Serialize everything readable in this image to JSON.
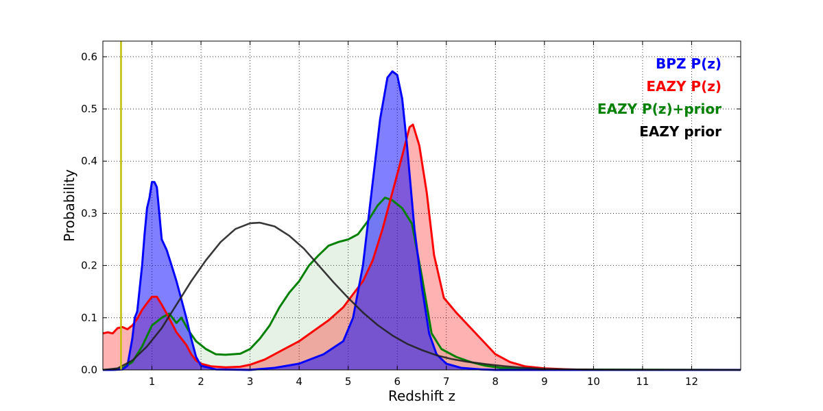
{
  "chart_data": {
    "type": "area",
    "title": "",
    "xlabel": "Redshift z",
    "ylabel": "Probability",
    "xlim": [
      0,
      13
    ],
    "ylim": [
      0,
      0.63
    ],
    "xticks": [
      1,
      2,
      3,
      4,
      5,
      6,
      7,
      8,
      9,
      10,
      11,
      12
    ],
    "yticks": [
      0.0,
      0.1,
      0.2,
      0.3,
      0.4,
      0.5,
      0.6
    ],
    "grid": true,
    "legend_position": "top-right",
    "vline": {
      "x": 0.37,
      "color": "#bfbf00"
    },
    "series": [
      {
        "name": "EAZY P(z)+prior",
        "color": "#008000",
        "fill": true,
        "fill_opacity": 0.1,
        "points": [
          [
            0,
            0
          ],
          [
            0.2,
            0.001
          ],
          [
            0.4,
            0.003
          ],
          [
            0.6,
            0.015
          ],
          [
            0.8,
            0.045
          ],
          [
            1.0,
            0.085
          ],
          [
            1.2,
            0.1
          ],
          [
            1.35,
            0.108
          ],
          [
            1.5,
            0.09
          ],
          [
            1.6,
            0.1
          ],
          [
            1.75,
            0.075
          ],
          [
            1.9,
            0.055
          ],
          [
            2.1,
            0.04
          ],
          [
            2.3,
            0.03
          ],
          [
            2.5,
            0.029
          ],
          [
            2.8,
            0.031
          ],
          [
            3.0,
            0.04
          ],
          [
            3.2,
            0.06
          ],
          [
            3.4,
            0.085
          ],
          [
            3.6,
            0.12
          ],
          [
            3.8,
            0.148
          ],
          [
            4.0,
            0.17
          ],
          [
            4.2,
            0.2
          ],
          [
            4.4,
            0.22
          ],
          [
            4.6,
            0.238
          ],
          [
            4.8,
            0.245
          ],
          [
            5.0,
            0.25
          ],
          [
            5.2,
            0.26
          ],
          [
            5.4,
            0.285
          ],
          [
            5.6,
            0.315
          ],
          [
            5.75,
            0.33
          ],
          [
            5.9,
            0.325
          ],
          [
            6.1,
            0.31
          ],
          [
            6.3,
            0.28
          ],
          [
            6.5,
            0.18
          ],
          [
            6.7,
            0.07
          ],
          [
            6.9,
            0.04
          ],
          [
            7.2,
            0.025
          ],
          [
            7.5,
            0.015
          ],
          [
            7.8,
            0.008
          ],
          [
            8.1,
            0.004
          ],
          [
            8.5,
            0.002
          ],
          [
            9,
            0.001
          ],
          [
            10,
            0.0005
          ],
          [
            13,
            0
          ]
        ]
      },
      {
        "name": "EAZY P(z)",
        "color": "#ff0000",
        "fill": true,
        "fill_opacity": 0.3,
        "points": [
          [
            0,
            0.07
          ],
          [
            0.1,
            0.072
          ],
          [
            0.2,
            0.07
          ],
          [
            0.3,
            0.08
          ],
          [
            0.4,
            0.082
          ],
          [
            0.5,
            0.078
          ],
          [
            0.6,
            0.085
          ],
          [
            0.7,
            0.098
          ],
          [
            0.8,
            0.115
          ],
          [
            0.9,
            0.128
          ],
          [
            1.0,
            0.14
          ],
          [
            1.1,
            0.14
          ],
          [
            1.2,
            0.125
          ],
          [
            1.3,
            0.108
          ],
          [
            1.4,
            0.09
          ],
          [
            1.5,
            0.072
          ],
          [
            1.6,
            0.06
          ],
          [
            1.7,
            0.048
          ],
          [
            1.8,
            0.03
          ],
          [
            1.9,
            0.018
          ],
          [
            2.0,
            0.012
          ],
          [
            2.2,
            0.007
          ],
          [
            2.5,
            0.005
          ],
          [
            2.8,
            0.006
          ],
          [
            3.0,
            0.01
          ],
          [
            3.3,
            0.02
          ],
          [
            3.6,
            0.035
          ],
          [
            4.0,
            0.055
          ],
          [
            4.3,
            0.075
          ],
          [
            4.6,
            0.095
          ],
          [
            4.9,
            0.12
          ],
          [
            5.1,
            0.145
          ],
          [
            5.3,
            0.17
          ],
          [
            5.5,
            0.21
          ],
          [
            5.7,
            0.27
          ],
          [
            5.9,
            0.34
          ],
          [
            6.1,
            0.41
          ],
          [
            6.25,
            0.465
          ],
          [
            6.32,
            0.47
          ],
          [
            6.45,
            0.43
          ],
          [
            6.6,
            0.34
          ],
          [
            6.75,
            0.22
          ],
          [
            6.95,
            0.138
          ],
          [
            7.2,
            0.11
          ],
          [
            7.5,
            0.08
          ],
          [
            7.8,
            0.05
          ],
          [
            8.0,
            0.03
          ],
          [
            8.3,
            0.015
          ],
          [
            8.6,
            0.007
          ],
          [
            9.0,
            0.003
          ],
          [
            9.5,
            0.001
          ],
          [
            10,
            0
          ],
          [
            13,
            0
          ]
        ]
      },
      {
        "name": "BPZ P(z)",
        "color": "#0000ff",
        "fill": true,
        "fill_opacity": 0.5,
        "points": [
          [
            0,
            0
          ],
          [
            0.2,
            0
          ],
          [
            0.4,
            0.001
          ],
          [
            0.5,
            0.008
          ],
          [
            0.6,
            0.06
          ],
          [
            0.65,
            0.1
          ],
          [
            0.7,
            0.112
          ],
          [
            0.8,
            0.2
          ],
          [
            0.85,
            0.26
          ],
          [
            0.9,
            0.31
          ],
          [
            0.95,
            0.33
          ],
          [
            1.0,
            0.36
          ],
          [
            1.05,
            0.36
          ],
          [
            1.1,
            0.35
          ],
          [
            1.15,
            0.3
          ],
          [
            1.2,
            0.25
          ],
          [
            1.3,
            0.23
          ],
          [
            1.4,
            0.2
          ],
          [
            1.5,
            0.17
          ],
          [
            1.6,
            0.135
          ],
          [
            1.7,
            0.1
          ],
          [
            1.8,
            0.06
          ],
          [
            1.9,
            0.025
          ],
          [
            2.0,
            0.008
          ],
          [
            2.3,
            0.001
          ],
          [
            3.0,
            0
          ],
          [
            3.5,
            0.004
          ],
          [
            4.0,
            0.012
          ],
          [
            4.5,
            0.03
          ],
          [
            4.9,
            0.055
          ],
          [
            5.1,
            0.1
          ],
          [
            5.3,
            0.2
          ],
          [
            5.5,
            0.36
          ],
          [
            5.65,
            0.48
          ],
          [
            5.8,
            0.56
          ],
          [
            5.9,
            0.572
          ],
          [
            6.0,
            0.565
          ],
          [
            6.1,
            0.52
          ],
          [
            6.2,
            0.43
          ],
          [
            6.35,
            0.27
          ],
          [
            6.5,
            0.16
          ],
          [
            6.65,
            0.07
          ],
          [
            6.8,
            0.03
          ],
          [
            7.0,
            0.012
          ],
          [
            7.3,
            0.004
          ],
          [
            7.7,
            0.001
          ],
          [
            8,
            0
          ],
          [
            13,
            0
          ]
        ]
      },
      {
        "name": "EAZY prior",
        "color": "#222222",
        "fill": false,
        "points": [
          [
            0,
            0
          ],
          [
            0.3,
            0.003
          ],
          [
            0.6,
            0.018
          ],
          [
            0.9,
            0.045
          ],
          [
            1.2,
            0.08
          ],
          [
            1.5,
            0.125
          ],
          [
            1.8,
            0.17
          ],
          [
            2.1,
            0.21
          ],
          [
            2.4,
            0.245
          ],
          [
            2.7,
            0.27
          ],
          [
            3.0,
            0.281
          ],
          [
            3.2,
            0.282
          ],
          [
            3.5,
            0.275
          ],
          [
            3.8,
            0.257
          ],
          [
            4.1,
            0.232
          ],
          [
            4.4,
            0.2
          ],
          [
            4.7,
            0.168
          ],
          [
            5.0,
            0.138
          ],
          [
            5.3,
            0.11
          ],
          [
            5.6,
            0.086
          ],
          [
            5.9,
            0.066
          ],
          [
            6.2,
            0.05
          ],
          [
            6.5,
            0.038
          ],
          [
            6.8,
            0.028
          ],
          [
            7.1,
            0.021
          ],
          [
            7.4,
            0.016
          ],
          [
            7.8,
            0.011
          ],
          [
            8.2,
            0.007
          ],
          [
            8.6,
            0.004
          ],
          [
            9.0,
            0.002
          ],
          [
            9.5,
            0.001
          ],
          [
            10,
            0.0005
          ],
          [
            13,
            0
          ]
        ]
      }
    ],
    "legend": [
      {
        "label": "BPZ P(z)",
        "color": "#0000ff"
      },
      {
        "label": "EAZY P(z)",
        "color": "#ff0000"
      },
      {
        "label": "EAZY P(z)+prior",
        "color": "#008000"
      },
      {
        "label": "EAZY prior",
        "color": "#000000"
      }
    ]
  }
}
